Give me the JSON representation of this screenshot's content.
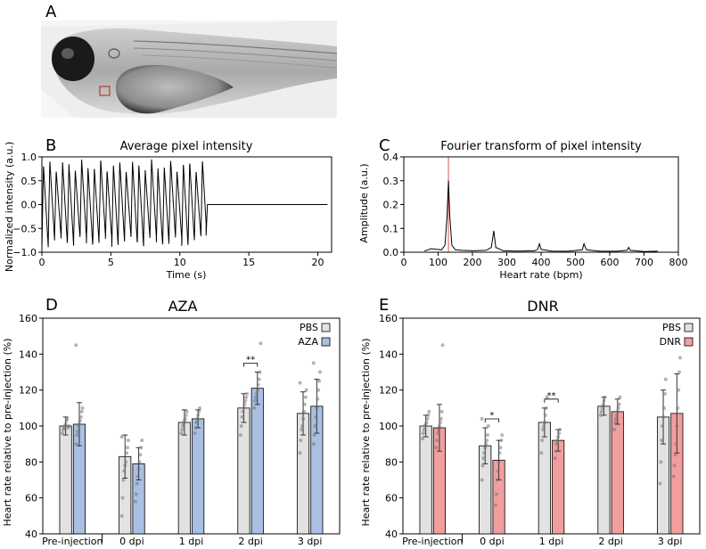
{
  "panels": {
    "A": "A",
    "B": "B",
    "C": "C",
    "D": "D",
    "E": "E"
  },
  "colors": {
    "pbs": "#e2e2e2",
    "aza": "#a9bfe3",
    "dnr": "#f29e9e",
    "signal": "#000000",
    "peak_marker": "#e05050",
    "roi_box": "#c0392b"
  },
  "chart_data": [
    {
      "panel": "B",
      "type": "line",
      "title": "Average pixel intensity",
      "xlabel": "Time (s)",
      "ylabel": "Normalized intensity (a.u.)",
      "xlim": [
        0,
        21
      ],
      "ylim": [
        -1.0,
        1.0
      ],
      "x_ticks": [
        0,
        5,
        10,
        15,
        20
      ],
      "y_ticks": [
        -1.0,
        -0.5,
        0.0,
        0.5,
        1.0
      ],
      "y_tick_labels": [
        "−1.0",
        "−0.5",
        "0.0",
        "0.5",
        "1.0"
      ],
      "signal": {
        "beats_per_second": 2.17,
        "start_s": 0,
        "end_s": 11.9,
        "flat_value_after": 0.0,
        "flat_until_s": 20.7,
        "amplitude_range": [
          0.7,
          0.95
        ],
        "trough_range": [
          -0.65,
          -0.9
        ]
      }
    },
    {
      "panel": "C",
      "type": "line",
      "title": "Fourier transform of pixel intensity",
      "xlabel": "Heart rate (bpm)",
      "ylabel": "Amplitude (a.u.)",
      "xlim": [
        0,
        800
      ],
      "ylim": [
        0.0,
        0.4
      ],
      "x_ticks": [
        0,
        100,
        200,
        300,
        400,
        500,
        600,
        700,
        800
      ],
      "y_ticks": [
        0.0,
        0.1,
        0.2,
        0.3,
        0.4
      ],
      "marker_bpm": 130,
      "spectrum": [
        [
          60,
          0.005
        ],
        [
          80,
          0.015
        ],
        [
          95,
          0.012
        ],
        [
          110,
          0.01
        ],
        [
          120,
          0.03
        ],
        [
          126,
          0.15
        ],
        [
          130,
          0.3
        ],
        [
          134,
          0.15
        ],
        [
          140,
          0.03
        ],
        [
          150,
          0.01
        ],
        [
          170,
          0.008
        ],
        [
          200,
          0.006
        ],
        [
          240,
          0.008
        ],
        [
          255,
          0.02
        ],
        [
          262,
          0.09
        ],
        [
          268,
          0.02
        ],
        [
          290,
          0.006
        ],
        [
          330,
          0.005
        ],
        [
          380,
          0.006
        ],
        [
          390,
          0.012
        ],
        [
          395,
          0.035
        ],
        [
          400,
          0.012
        ],
        [
          430,
          0.005
        ],
        [
          480,
          0.004
        ],
        [
          520,
          0.01
        ],
        [
          525,
          0.035
        ],
        [
          532,
          0.01
        ],
        [
          570,
          0.004
        ],
        [
          620,
          0.004
        ],
        [
          650,
          0.008
        ],
        [
          655,
          0.02
        ],
        [
          660,
          0.008
        ],
        [
          700,
          0.003
        ],
        [
          740,
          0.004
        ]
      ]
    },
    {
      "panel": "D",
      "type": "bar",
      "title": "AZA",
      "ylabel": "Heart rate relative to pre-injection (%)",
      "ylim": [
        40,
        160
      ],
      "y_ticks": [
        40,
        60,
        80,
        100,
        120,
        140,
        160
      ],
      "categories": [
        "Pre-injection",
        "0 dpi",
        "1 dpi",
        "2 dpi",
        "3 dpi"
      ],
      "series": [
        {
          "name": "PBS",
          "values": [
            100,
            83,
            102,
            110,
            107
          ],
          "errors": [
            5,
            12,
            7,
            8,
            12
          ],
          "points": [
            [
              96,
              98,
              99,
              100,
              101,
              103,
              104,
              99,
              100
            ],
            [
              50,
              60,
              70,
              75,
              78,
              80,
              85,
              88,
              92,
              94
            ],
            [
              96,
              98,
              100,
              101,
              103,
              104,
              106,
              108
            ],
            [
              95,
              100,
              105,
              108,
              110,
              112,
              114,
              116,
              118
            ],
            [
              85,
              92,
              98,
              100,
              104,
              108,
              112,
              116,
              120,
              124
            ]
          ]
        },
        {
          "name": "AZA",
          "values": [
            101,
            79,
            104,
            121,
            111
          ],
          "errors": [
            12,
            9,
            5,
            9,
            15
          ],
          "points": [
            [
              90,
              95,
              97,
              100,
              101,
              103,
              105,
              108,
              110,
              145
            ],
            [
              58,
              62,
              68,
              72,
              76,
              80,
              84,
              88,
              92
            ],
            [
              96,
              99,
              102,
              104,
              106,
              108,
              110
            ],
            [
              110,
              114,
              116,
              118,
              120,
              123,
              126,
              130,
              146
            ],
            [
              90,
              95,
              100,
              105,
              110,
              115,
              120,
              125,
              130,
              135
            ]
          ]
        }
      ],
      "significance": [
        {
          "category": "2 dpi",
          "label": "**"
        }
      ]
    },
    {
      "panel": "E",
      "type": "bar",
      "title": "DNR",
      "ylabel": "Heart rate relative to pre-injection (%)",
      "ylim": [
        40,
        160
      ],
      "y_ticks": [
        40,
        60,
        80,
        100,
        120,
        140,
        160
      ],
      "categories": [
        "Pre-injection",
        "0 dpi",
        "1 dpi",
        "2 dpi",
        "3 dpi"
      ],
      "series": [
        {
          "name": "PBS",
          "values": [
            100,
            89,
            102,
            111,
            105
          ],
          "errors": [
            6,
            10,
            8,
            5,
            15
          ],
          "points": [
            [
              93,
              96,
              98,
              100,
              101,
              102,
              104,
              106,
              108
            ],
            [
              70,
              78,
              82,
              85,
              88,
              90,
              92,
              95,
              100,
              104
            ],
            [
              85,
              92,
              98,
              100,
              102,
              106,
              110,
              116
            ],
            [
              106,
              108,
              110,
              112,
              114,
              116
            ],
            [
              68,
              80,
              92,
              100,
              105,
              110,
              118,
              126
            ]
          ]
        },
        {
          "name": "DNR",
          "values": [
            99,
            81,
            92,
            108,
            107
          ],
          "errors": [
            13,
            11,
            6,
            7,
            22
          ],
          "points": [
            [
              88,
              92,
              96,
              98,
              100,
              102,
              104,
              108,
              145
            ],
            [
              56,
              62,
              70,
              75,
              80,
              85,
              88,
              92,
              95
            ],
            [
              82,
              86,
              90,
              92,
              94,
              96,
              98
            ],
            [
              98,
              102,
              104,
              106,
              108,
              110,
              112,
              116
            ],
            [
              72,
              78,
              84,
              90,
              100,
              110,
              120,
              130,
              138
            ]
          ]
        }
      ],
      "significance": [
        {
          "category": "0 dpi",
          "label": "*"
        },
        {
          "category": "1 dpi",
          "label": "**"
        }
      ]
    }
  ]
}
